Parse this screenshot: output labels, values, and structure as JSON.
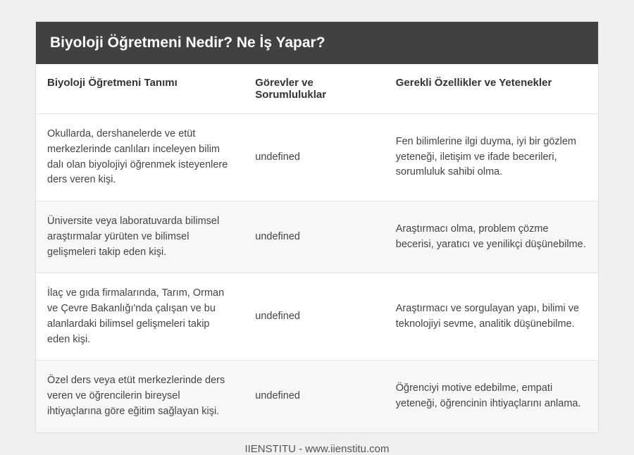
{
  "title": "Biyoloji Öğretmeni Nedir? Ne İş Yapar?",
  "columns": [
    "Biyoloji Öğretmeni Tanımı",
    "Görevler ve Sorumluluklar",
    "Gerekli Özellikler ve Yetenekler"
  ],
  "rows": [
    {
      "c0": "Okullarda, dershanelerde ve etüt merkezlerinde canlıları inceleyen bilim dalı olan biyolojiyi öğrenmek isteyenlere ders veren kişi.",
      "c1": "undefined",
      "c2": "Fen bilimlerine ilgi duyma, iyi bir gözlem yeteneği, iletişim ve ifade becerileri, sorumluluk sahibi olma."
    },
    {
      "c0": "Üniversite veya laboratuvarda bilimsel araştırmalar yürüten ve bilimsel gelişmeleri takip eden kişi.",
      "c1": "undefined",
      "c2": "Araştırmacı olma, problem çözme becerisi, yaratıcı ve yenilikçi düşünebilme."
    },
    {
      "c0": "İlaç ve gıda firmalarında, Tarım, Orman ve Çevre Bakanlığı'nda çalışan ve bu alanlardaki bilimsel gelişmeleri takip eden kişi.",
      "c1": "undefined",
      "c2": "Araştırmacı ve sorgulayan yapı, bilimi ve teknolojiyi sevme, analitik düşünebilme."
    },
    {
      "c0": "Özel ders veya etüt merkezlerinde ders veren ve öğrencilerin bireysel ihtiyaçlarına göre eğitim sağlayan kişi.",
      "c1": "undefined",
      "c2": "Öğrenciyi motive edebilme, empati yeteneği, öğrencinin ihtiyaçlarını anlama."
    }
  ],
  "footer": "IIENSTITU - www.iienstitu.com",
  "styling": {
    "page_bg": "#f0f0f0",
    "title_bg": "#414141",
    "title_color": "#ffffff",
    "title_fontsize": 21,
    "header_bg": "#ffffff",
    "header_color": "#333333",
    "header_fontsize": 15,
    "cell_color": "#444444",
    "cell_fontsize": 14.5,
    "row_even_bg": "#f7f7f7",
    "row_odd_bg": "#ffffff",
    "border_color": "#e5e5e5",
    "footer_color": "#555555",
    "footer_fontsize": 15,
    "col_widths_pct": [
      37,
      25,
      38
    ]
  }
}
